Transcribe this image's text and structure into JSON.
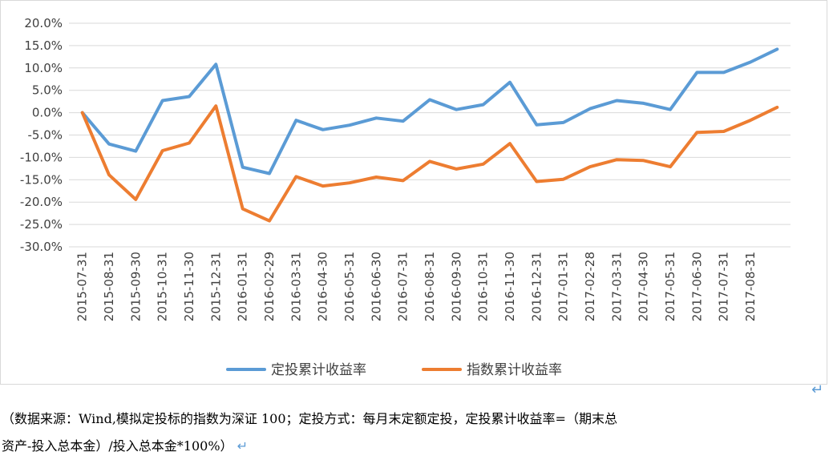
{
  "chart_data": {
    "type": "line",
    "categories": [
      "2015-07-31",
      "2015-08-31",
      "2015-09-30",
      "2015-10-31",
      "2015-11-30",
      "2015-12-31",
      "2016-01-31",
      "2016-02-29",
      "2016-03-31",
      "2016-04-30",
      "2016-05-31",
      "2016-06-30",
      "2016-07-31",
      "2016-08-31",
      "2016-09-30",
      "2016-10-31",
      "2016-11-30",
      "2016-12-31",
      "2017-01-31",
      "2017-02-28",
      "2017-03-31",
      "2017-04-30",
      "2017-05-31",
      "2017-06-30",
      "2017-07-31",
      "2017-08-31",
      ""
    ],
    "series": [
      {
        "name": "定投累计收益率",
        "color": "#5b9bd5",
        "values": [
          0.0,
          -7.0,
          -8.6,
          2.7,
          3.6,
          10.8,
          -12.2,
          -13.6,
          -1.7,
          -3.8,
          -2.8,
          -1.2,
          -1.9,
          2.9,
          0.7,
          1.8,
          6.8,
          -2.7,
          -2.2,
          0.9,
          2.7,
          2.1,
          0.7,
          9.0,
          9.0,
          11.3,
          14.2
        ]
      },
      {
        "name": "指数累计收益率",
        "color": "#ed7d31",
        "values": [
          0.0,
          -13.9,
          -19.4,
          -8.5,
          -6.8,
          1.5,
          -21.5,
          -24.2,
          -14.3,
          -16.4,
          -15.7,
          -14.4,
          -15.2,
          -10.9,
          -12.6,
          -11.5,
          -6.9,
          -15.4,
          -14.9,
          -12.1,
          -10.5,
          -10.7,
          -12.1,
          -4.4,
          -4.2,
          -1.7,
          1.2
        ]
      }
    ],
    "ylim": [
      -30,
      20
    ],
    "ytick_step": 5,
    "ytick_labels": [
      "20.0%",
      "15.0%",
      "10.0%",
      "5.0%",
      "0.0%",
      "-5.0%",
      "-10.0%",
      "-15.0%",
      "-20.0%",
      "-25.0%",
      "-30.0%"
    ],
    "grid": true,
    "legend_position": "bottom"
  },
  "caption": {
    "line1": "（数据来源：Wind,模拟定投标的指数为深证 100；定投方式：每月末定额定投，定投累计收益率=（期末总",
    "line2": "资产-投入总本金）/投入总本金*100%）",
    "return_mark": "↵"
  }
}
